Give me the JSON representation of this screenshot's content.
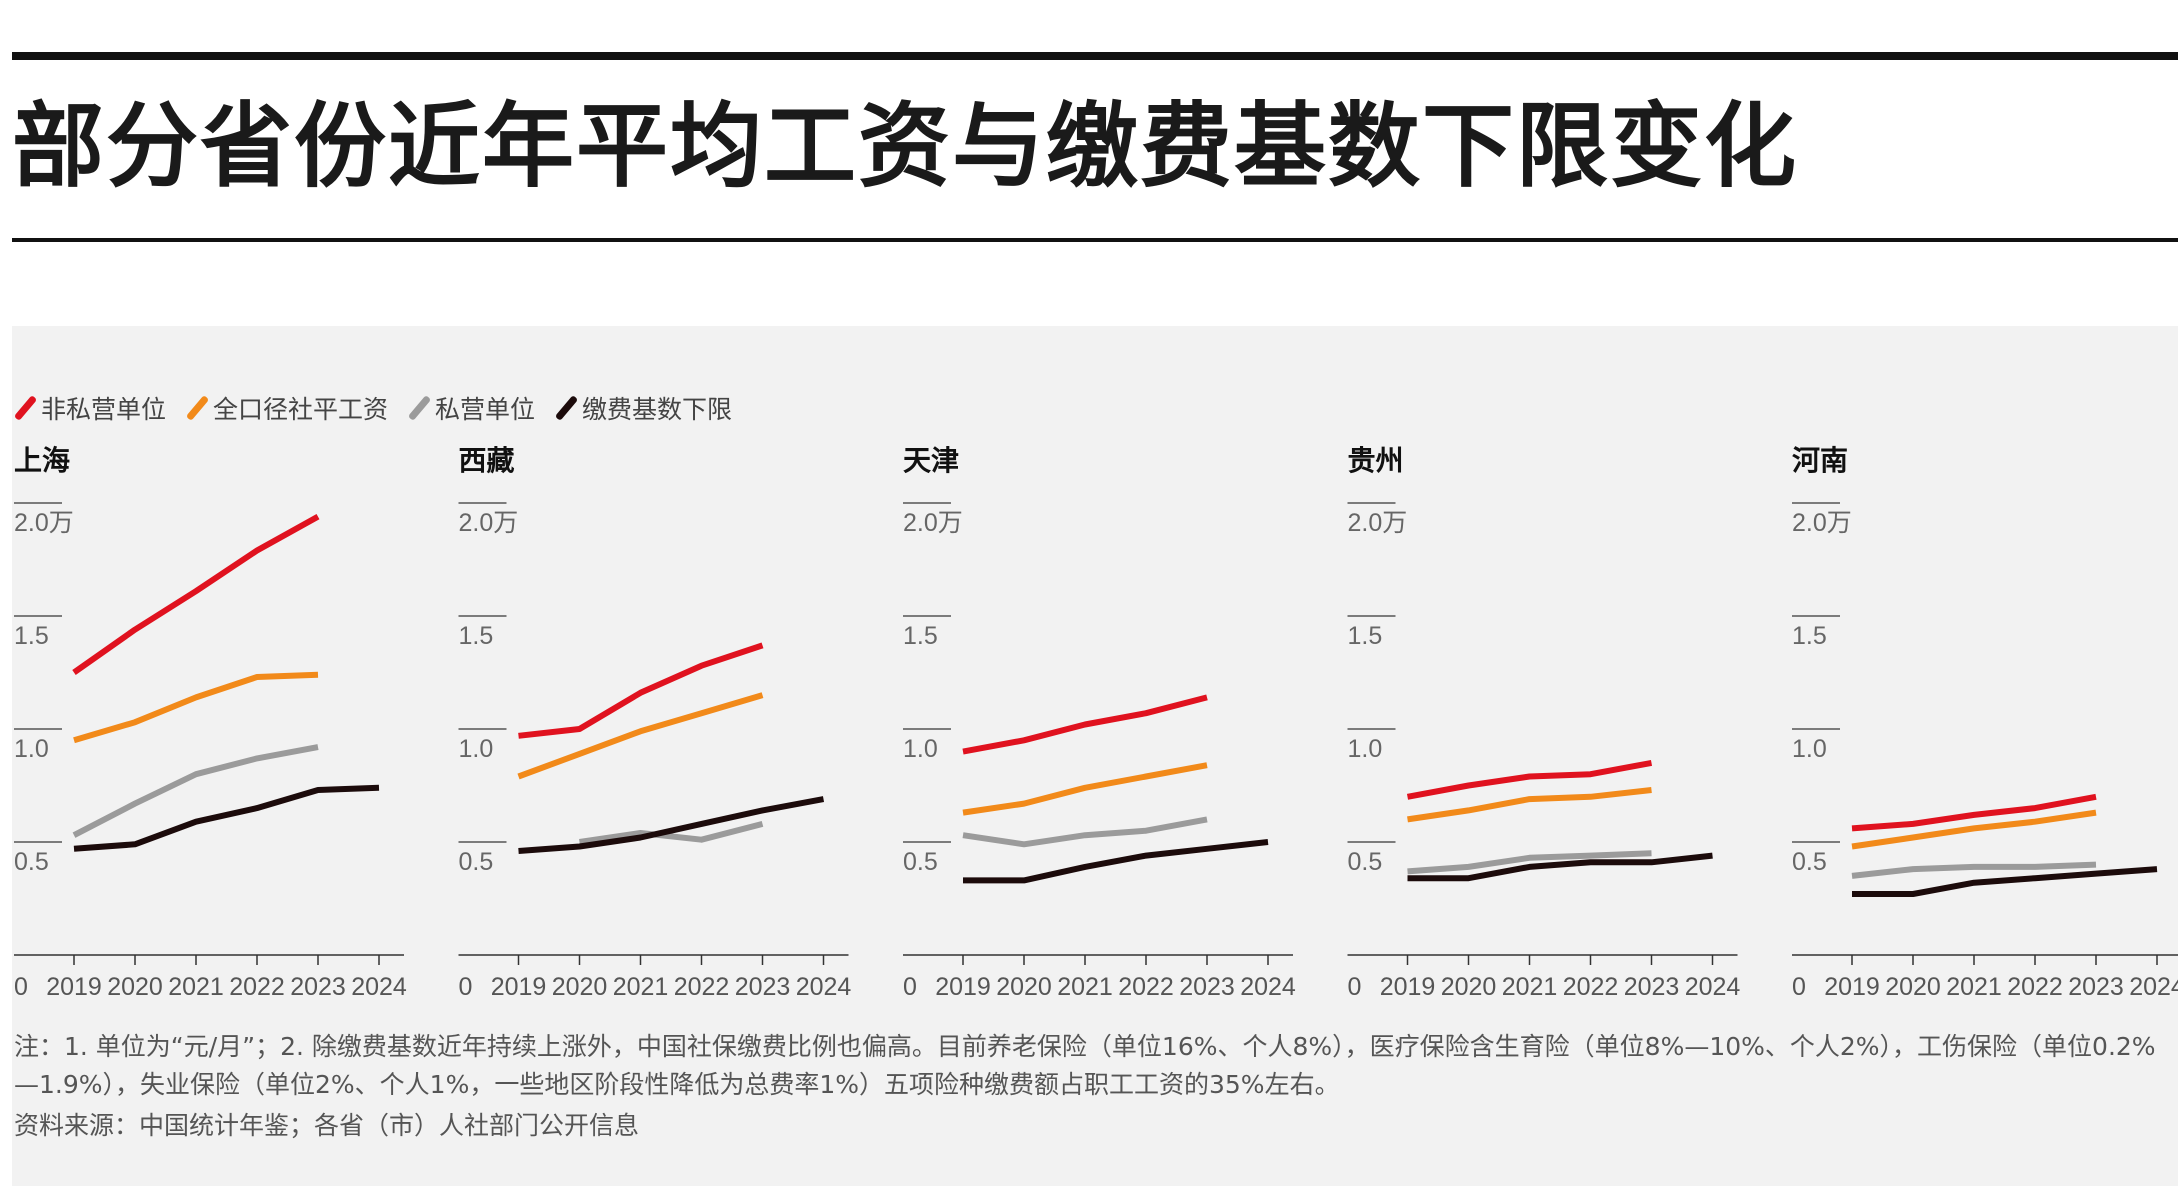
{
  "title": "部分省份近年平均工资与缴费基数下限变化",
  "legend": [
    {
      "label": "非私营单位",
      "color": "#e0121f"
    },
    {
      "label": "全口径社平工资",
      "color": "#f28a1a"
    },
    {
      "label": "私营单位",
      "color": "#9b9b9b"
    },
    {
      "label": "缴费基数下限",
      "color": "#1c0b0b"
    }
  ],
  "note": "注：1. 单位为“元/月”；2. 除缴费基数近年持续上涨外，中国社保缴费比例也偏高。目前养老保险（单位16%、个人8%），医疗保险含生育险（单位8%—10%、个人2%），工伤保险（单位0.2%—1.9%），失业保险（单位2%、个人1%，一些地区阶段性降低为总费率1%）五项险种缴费额占职工工资的35%左右。",
  "source": "资料来源：中国统计年鉴；各省（市）人社部门公开信息",
  "chart_data": [
    {
      "type": "line",
      "title": "上海",
      "x": [
        "2019",
        "2020",
        "2021",
        "2022",
        "2023",
        "2024"
      ],
      "yticks": [
        "0.5",
        "1.0",
        "1.5",
        "2.0万"
      ],
      "x0_label": "0",
      "ylim": [
        0,
        2.0
      ],
      "series": [
        {
          "name": "非私营单位",
          "values": [
            1.25,
            1.44,
            1.61,
            1.79,
            1.94,
            null
          ]
        },
        {
          "name": "全口径社平工资",
          "values": [
            0.95,
            1.03,
            1.14,
            1.23,
            1.24,
            null
          ]
        },
        {
          "name": "私营单位",
          "values": [
            0.53,
            0.67,
            0.8,
            0.87,
            0.92,
            null
          ]
        },
        {
          "name": "缴费基数下限",
          "values": [
            0.47,
            0.49,
            0.59,
            0.65,
            0.73,
            0.74
          ]
        }
      ]
    },
    {
      "type": "line",
      "title": "西藏",
      "x": [
        "2019",
        "2020",
        "2021",
        "2022",
        "2023",
        "2024"
      ],
      "yticks": [
        "0.5",
        "1.0",
        "1.5",
        "2.0万"
      ],
      "x0_label": "0",
      "ylim": [
        0,
        2.0
      ],
      "series": [
        {
          "name": "非私营单位",
          "values": [
            0.97,
            1.0,
            1.16,
            1.28,
            1.37,
            null
          ]
        },
        {
          "name": "全口径社平工资",
          "values": [
            0.79,
            0.89,
            0.99,
            1.07,
            1.15,
            null
          ]
        },
        {
          "name": "私营单位",
          "values": [
            null,
            0.5,
            0.54,
            0.51,
            0.58,
            null
          ]
        },
        {
          "name": "缴费基数下限",
          "values": [
            0.46,
            0.48,
            0.52,
            0.58,
            0.64,
            0.69
          ]
        }
      ]
    },
    {
      "type": "line",
      "title": "天津",
      "x": [
        "2019",
        "2020",
        "2021",
        "2022",
        "2023",
        "2024"
      ],
      "yticks": [
        "0.5",
        "1.0",
        "1.5",
        "2.0万"
      ],
      "x0_label": "0",
      "ylim": [
        0,
        2.0
      ],
      "series": [
        {
          "name": "非私营单位",
          "values": [
            0.9,
            0.95,
            1.02,
            1.07,
            1.14,
            null
          ]
        },
        {
          "name": "全口径社平工资",
          "values": [
            0.63,
            0.67,
            0.74,
            0.79,
            0.84,
            null
          ]
        },
        {
          "name": "私营单位",
          "values": [
            0.53,
            0.49,
            0.53,
            0.55,
            0.6,
            null
          ]
        },
        {
          "name": "缴费基数下限",
          "values": [
            0.33,
            0.33,
            0.39,
            0.44,
            0.47,
            0.5
          ]
        }
      ]
    },
    {
      "type": "line",
      "title": "贵州",
      "x": [
        "2019",
        "2020",
        "2021",
        "2022",
        "2023",
        "2024"
      ],
      "yticks": [
        "0.5",
        "1.0",
        "1.5",
        "2.0万"
      ],
      "x0_label": "0",
      "ylim": [
        0,
        2.0
      ],
      "series": [
        {
          "name": "非私营单位",
          "values": [
            0.7,
            0.75,
            0.79,
            0.8,
            0.85,
            null
          ]
        },
        {
          "name": "全口径社平工资",
          "values": [
            0.6,
            0.64,
            0.69,
            0.7,
            0.73,
            null
          ]
        },
        {
          "name": "私营单位",
          "values": [
            0.37,
            0.39,
            0.43,
            0.44,
            0.45,
            null
          ]
        },
        {
          "name": "缴费基数下限",
          "values": [
            0.34,
            0.34,
            0.39,
            0.41,
            0.41,
            0.44
          ]
        }
      ]
    },
    {
      "type": "line",
      "title": "河南",
      "x": [
        "2019",
        "2020",
        "2021",
        "2022",
        "2023",
        "2024"
      ],
      "yticks": [
        "0.5",
        "1.0",
        "1.5",
        "2.0万"
      ],
      "x0_label": "0",
      "ylim": [
        0,
        2.0
      ],
      "series": [
        {
          "name": "非私营单位",
          "values": [
            0.56,
            0.58,
            0.62,
            0.65,
            0.7,
            null
          ]
        },
        {
          "name": "全口径社平工资",
          "values": [
            0.48,
            0.52,
            0.56,
            0.59,
            0.63,
            null
          ]
        },
        {
          "name": "私营单位",
          "values": [
            0.35,
            0.38,
            0.39,
            0.39,
            0.4,
            null
          ]
        },
        {
          "name": "缴费基数下限",
          "values": [
            0.27,
            0.27,
            0.32,
            0.34,
            0.36,
            0.38
          ]
        }
      ]
    }
  ]
}
